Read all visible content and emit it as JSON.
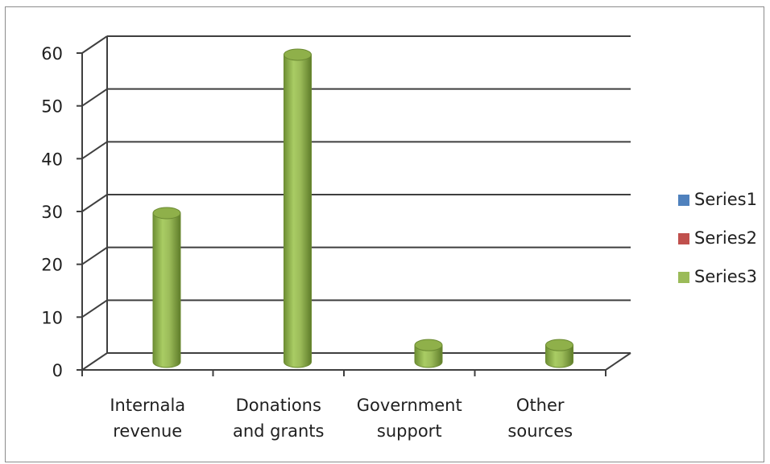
{
  "chart_data": {
    "type": "bar",
    "style": "3d-cylinder",
    "categories": [
      [
        "Internala",
        "revenue"
      ],
      [
        "Donations",
        "and grants"
      ],
      [
        "Government",
        "support"
      ],
      [
        "Other",
        "sources"
      ]
    ],
    "series": [
      {
        "name": "Series1",
        "color": "#4f81bd",
        "values": [
          0,
          0,
          0,
          0
        ]
      },
      {
        "name": "Series2",
        "color": "#c0504d",
        "values": [
          0,
          0,
          0,
          0
        ]
      },
      {
        "name": "Series3",
        "color": "#9bbb59",
        "values": [
          30,
          60,
          5,
          5
        ]
      }
    ],
    "yticks": [
      0,
      10,
      20,
      30,
      40,
      50,
      60
    ],
    "ylim": [
      0,
      60
    ],
    "grid": true,
    "legend": "right"
  }
}
